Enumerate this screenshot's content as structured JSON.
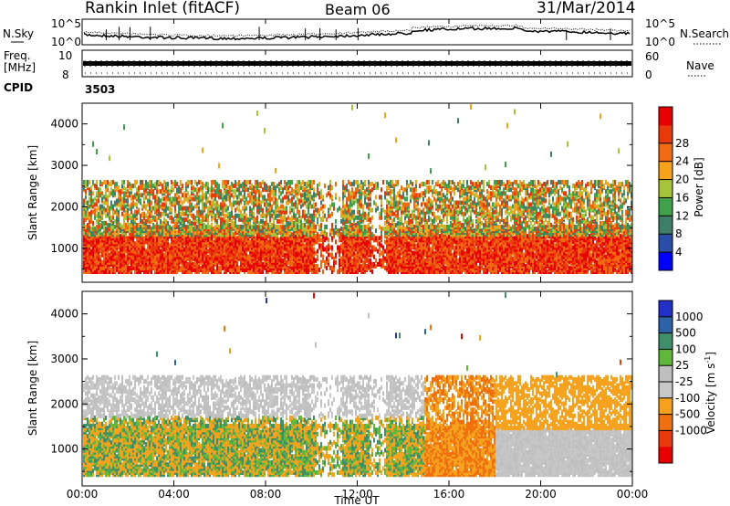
{
  "header": {
    "station": "Rankin Inlet (fitACF)",
    "beam": "Beam 06",
    "date": "31/Mar/2014"
  },
  "strips": {
    "nsky_label": "N.Sky",
    "nsky_ticks": [
      "10^5",
      "10^0"
    ],
    "nsearch_label": "N.Search",
    "nsearch_ticks": [
      "10^5",
      "10^0"
    ],
    "freq_label": "Freq.",
    "freq_unit": "[MHz]",
    "freq_ticks": [
      "10",
      "8"
    ],
    "nave_label": "Nave",
    "nave_ticks": [
      "60",
      "0"
    ],
    "cpid_label": "CPID",
    "cpid_value": "3503"
  },
  "colors": {
    "power_scale": [
      "#0000ff",
      "#2a4fa8",
      "#3f7f6a",
      "#3fa24a",
      "#a5c43a",
      "#f6a21a",
      "#f26a10",
      "#ea3a0c",
      "#e80000"
    ],
    "velocity_scale": [
      "#2030c8",
      "#2c62a8",
      "#3f8f6a",
      "#5fb83a",
      "#bfbfbf",
      "#c7c7c7",
      "#f7a21e",
      "#f07010",
      "#e83a0c",
      "#e80000"
    ]
  },
  "chart_data": [
    {
      "type": "heatmap",
      "title": "Power",
      "ylabel": "Slant Range [km]",
      "ylim": [
        180,
        4500
      ],
      "yticks": [
        "1000",
        "2000",
        "3000",
        "4000"
      ],
      "xlabel": "Time UT",
      "xticks": [
        "00:00",
        "04:00",
        "08:00",
        "12:00",
        "16:00",
        "20:00",
        "00:00"
      ],
      "colorbar_label": "Power [dB]",
      "colorbar_ticks": [
        "4",
        "8",
        "12",
        "16",
        "20",
        "24",
        "28"
      ]
    },
    {
      "type": "heatmap",
      "title": "Velocity",
      "ylabel": "Slant Range [km]",
      "ylim": [
        180,
        4500
      ],
      "yticks": [
        "1000",
        "2000",
        "3000",
        "4000"
      ],
      "xlabel": "Time UT",
      "xticks": [
        "00:00",
        "04:00",
        "08:00",
        "12:00",
        "16:00",
        "20:00",
        "00:00"
      ],
      "colorbar_label": "Velocity [m s",
      "colorbar_label_sup": "-1",
      "colorbar_label_close": "]",
      "colorbar_ticks": [
        "1000",
        "500",
        "100",
        "25",
        "-25",
        "-100",
        "-500",
        "-1000"
      ]
    }
  ]
}
